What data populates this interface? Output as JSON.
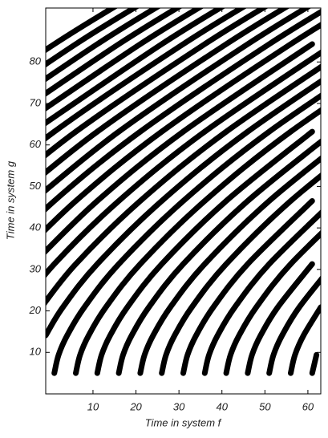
{
  "chart_data": {
    "type": "line",
    "x_label": "Time in system f",
    "y_label": "Time in system g",
    "color": "#000000",
    "xlim": [
      -1,
      63
    ],
    "ylim": [
      0,
      93
    ],
    "xticks": [
      10,
      20,
      30,
      40,
      50,
      60
    ],
    "yticks": [
      10,
      20,
      30,
      40,
      50,
      60,
      70,
      80
    ],
    "series": [
      {
        "x": [
          61,
          62
        ],
        "values": [
          5,
          9.4
        ]
      },
      {
        "x": [
          56,
          57,
          59,
          63
        ],
        "values": [
          5,
          9.4,
          14.1,
          20.9
        ]
      },
      {
        "x": [
          51,
          52,
          54,
          58,
          66
        ],
        "values": [
          5,
          9.4,
          14.1,
          20.9,
          31.3
        ]
      },
      {
        "x": [
          46,
          47,
          49,
          53,
          61
        ],
        "values": [
          5,
          9.4,
          14.1,
          20.9,
          31.3
        ]
      },
      {
        "x": [
          41,
          42,
          44,
          48,
          56,
          71
        ],
        "values": [
          5,
          9.4,
          14.1,
          20.9,
          31.3,
          46.5
        ]
      },
      {
        "x": [
          36,
          37,
          39,
          43,
          51,
          66
        ],
        "values": [
          5,
          9.4,
          14.1,
          20.9,
          31.3,
          46.5
        ]
      },
      {
        "x": [
          31,
          32,
          34,
          38,
          46,
          61
        ],
        "values": [
          5,
          9.4,
          14.1,
          20.9,
          31.3,
          46.5
        ]
      },
      {
        "x": [
          26,
          27,
          29,
          33,
          41,
          56,
          76
        ],
        "values": [
          5,
          9.4,
          14.1,
          20.9,
          31.3,
          46.5,
          63.2
        ]
      },
      {
        "x": [
          21,
          22,
          24,
          28,
          36,
          51,
          71
        ],
        "values": [
          5,
          9.4,
          14.1,
          20.9,
          31.3,
          46.5,
          63.2
        ]
      },
      {
        "x": [
          16,
          17,
          19,
          23,
          31,
          46,
          66
        ],
        "values": [
          5,
          9.4,
          14.1,
          20.9,
          31.3,
          46.5,
          63.2
        ]
      },
      {
        "x": [
          11,
          12,
          14,
          18,
          26,
          41,
          61
        ],
        "values": [
          5,
          9.4,
          14.1,
          20.9,
          31.3,
          46.5,
          63.2
        ]
      },
      {
        "x": [
          6,
          7,
          9,
          13,
          21,
          36,
          56,
          86
        ],
        "values": [
          5,
          9.4,
          14.1,
          20.9,
          31.3,
          46.5,
          63.2,
          84.3
        ]
      },
      {
        "x": [
          1,
          2,
          4,
          8,
          16,
          31,
          51,
          81
        ],
        "values": [
          5,
          9.4,
          14.1,
          20.9,
          31.3,
          46.5,
          63.2,
          84.3
        ]
      },
      {
        "x": [
          -1,
          3,
          11,
          26,
          46,
          76
        ],
        "values": [
          14.1,
          20.9,
          31.3,
          46.5,
          63.2,
          84.3
        ]
      },
      {
        "x": [
          -2,
          6,
          21,
          41,
          71
        ],
        "values": [
          20.9,
          31.3,
          46.5,
          63.2,
          84.3
        ]
      },
      {
        "x": [
          -7,
          1,
          16,
          36,
          66
        ],
        "values": [
          20.9,
          31.3,
          46.5,
          63.2,
          84.3
        ]
      },
      {
        "x": [
          -4,
          11,
          31,
          61
        ],
        "values": [
          31.3,
          46.5,
          63.2,
          84.3
        ]
      },
      {
        "x": [
          -9,
          6,
          26,
          56,
          76
        ],
        "values": [
          31.3,
          46.5,
          63.2,
          84.3,
          97
        ]
      },
      {
        "x": [
          -14,
          1,
          21,
          51,
          71
        ],
        "values": [
          31.3,
          46.5,
          63.2,
          84.3,
          97
        ]
      },
      {
        "x": [
          -4,
          16,
          46,
          66
        ],
        "values": [
          46.5,
          63.2,
          84.3,
          97
        ]
      },
      {
        "x": [
          -9,
          11,
          41,
          61
        ],
        "values": [
          46.5,
          63.2,
          84.3,
          97
        ]
      },
      {
        "x": [
          -14,
          6,
          36,
          56
        ],
        "values": [
          46.5,
          63.2,
          84.3,
          97
        ]
      },
      {
        "x": [
          -19,
          1,
          31,
          51
        ],
        "values": [
          46.5,
          63.2,
          84.3,
          97
        ]
      },
      {
        "x": [
          -4,
          26,
          46
        ],
        "values": [
          63.2,
          84.3,
          97
        ]
      },
      {
        "x": [
          -9,
          21,
          41
        ],
        "values": [
          63.2,
          84.3,
          97
        ]
      },
      {
        "x": [
          -14,
          16,
          36
        ],
        "values": [
          63.2,
          84.3,
          97
        ]
      },
      {
        "x": [
          -19,
          11,
          31
        ],
        "values": [
          63.2,
          84.3,
          97
        ]
      },
      {
        "x": [
          -24,
          6,
          26
        ],
        "values": [
          63.2,
          84.3,
          97
        ]
      },
      {
        "x": [
          -29,
          1,
          21
        ],
        "values": [
          63.2,
          84.3,
          97
        ]
      }
    ]
  }
}
